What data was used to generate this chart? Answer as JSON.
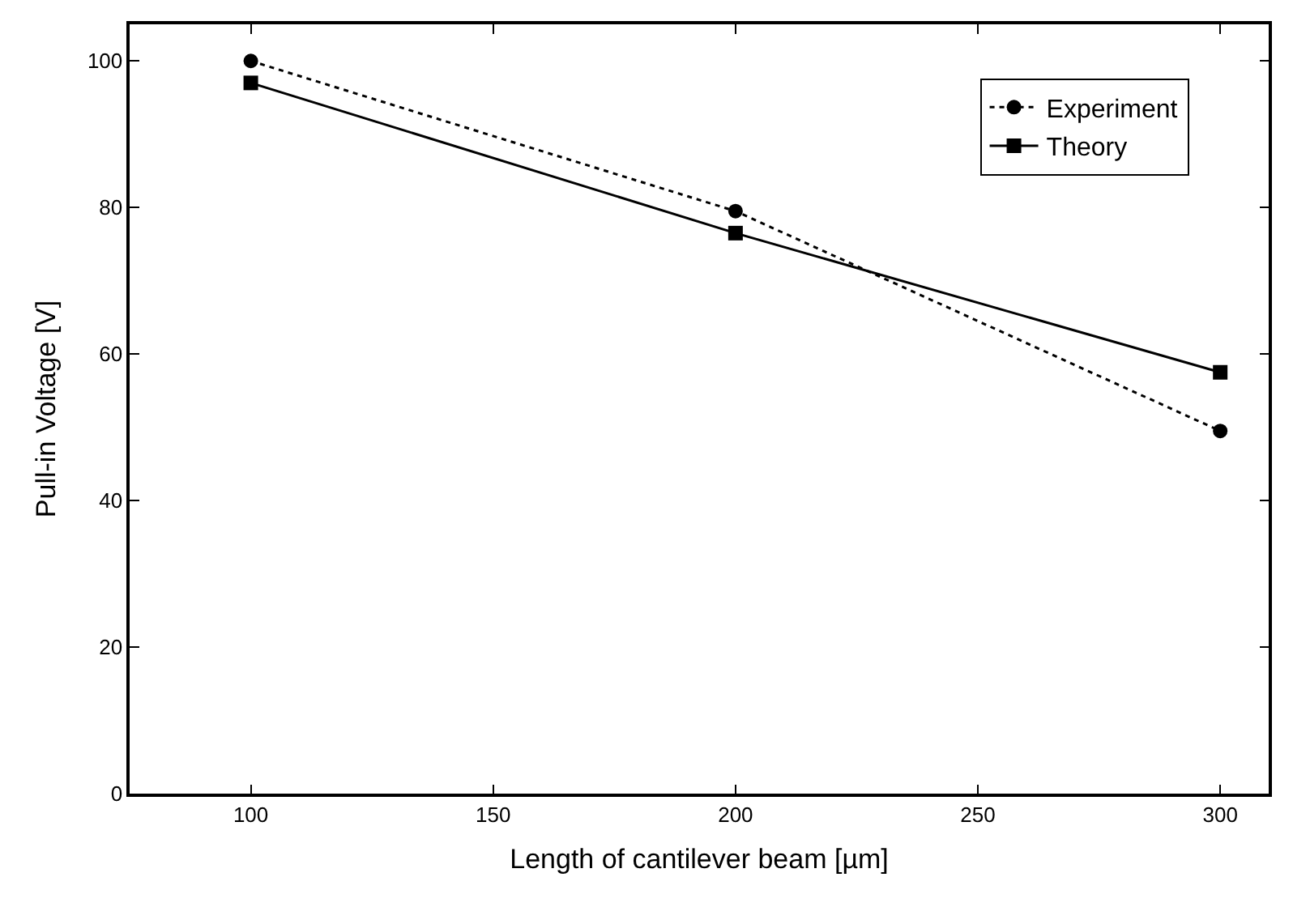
{
  "chart_data": {
    "type": "line",
    "xlabel": "Length of cantilever beam [µm]",
    "ylabel": "Pull-in Voltage [V]",
    "x": [
      100,
      200,
      300
    ],
    "series": [
      {
        "name": "Experiment",
        "color": "#000000",
        "values": [
          100,
          79.5,
          49.5
        ],
        "line_style": "dotted",
        "marker": "circle"
      },
      {
        "name": "Theory",
        "color": "#000000",
        "values": [
          97,
          76.5,
          57.5
        ],
        "line_style": "solid",
        "marker": "square"
      }
    ],
    "xlim": [
      75,
      310
    ],
    "xticks": [
      100,
      150,
      200,
      250,
      300
    ],
    "ylim": [
      0,
      105
    ],
    "yticks": [
      0,
      20,
      40,
      60,
      80,
      100
    ],
    "legend": "top right"
  }
}
